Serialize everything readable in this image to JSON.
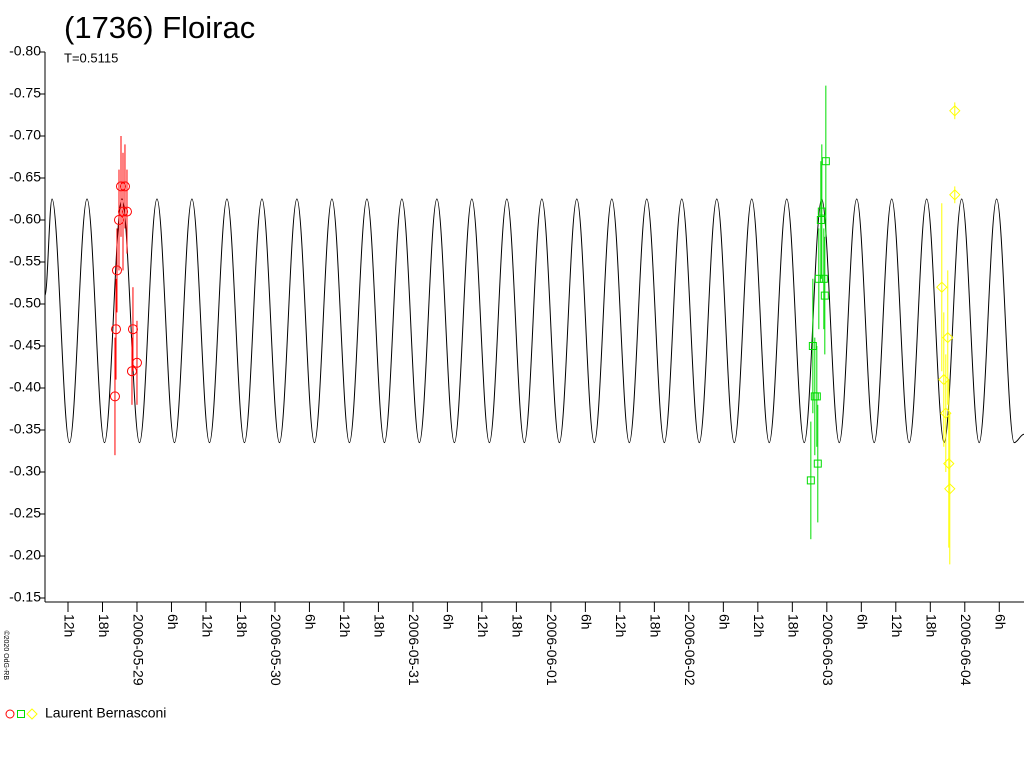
{
  "chart_data": {
    "type": "scatter",
    "title": "(1736) Floirac",
    "subtitle": "T=0.5115",
    "credit": "©2020 OdG-RB",
    "observer": "Laurent Bernasconi",
    "xlim": [
      -16,
      154.3
    ],
    "ylim": [
      -0.15,
      -0.8
    ],
    "xticks": [
      {
        "value": -12,
        "label": "12h"
      },
      {
        "value": -6,
        "label": "18h"
      },
      {
        "value": 0,
        "label": "2006-05-29"
      },
      {
        "value": 6,
        "label": "6h"
      },
      {
        "value": 12,
        "label": "12h"
      },
      {
        "value": 18,
        "label": "18h"
      },
      {
        "value": 24,
        "label": "2006-05-30"
      },
      {
        "value": 30,
        "label": "6h"
      },
      {
        "value": 36,
        "label": "12h"
      },
      {
        "value": 42,
        "label": "18h"
      },
      {
        "value": 48,
        "label": "2006-05-31"
      },
      {
        "value": 54,
        "label": "6h"
      },
      {
        "value": 60,
        "label": "12h"
      },
      {
        "value": 66,
        "label": "18h"
      },
      {
        "value": 72,
        "label": "2006-06-01"
      },
      {
        "value": 78,
        "label": "6h"
      },
      {
        "value": 84,
        "label": "12h"
      },
      {
        "value": 90,
        "label": "18h"
      },
      {
        "value": 96,
        "label": "2006-06-02"
      },
      {
        "value": 102,
        "label": "6h"
      },
      {
        "value": 108,
        "label": "12h"
      },
      {
        "value": 114,
        "label": "18h"
      },
      {
        "value": 120,
        "label": "2006-06-03"
      },
      {
        "value": 126,
        "label": "6h"
      },
      {
        "value": 132,
        "label": "12h"
      },
      {
        "value": 138,
        "label": "18h"
      },
      {
        "value": 144,
        "label": "2006-06-04"
      },
      {
        "value": 150,
        "label": "6h"
      }
    ],
    "yticks": [
      {
        "value": -0.8,
        "label": "-0.80"
      },
      -0.75,
      {
        "value": -0.7,
        "label": "-0.70"
      },
      -0.65,
      {
        "value": -0.6,
        "label": "-0.60"
      },
      -0.55,
      {
        "value": -0.5,
        "label": "-0.50"
      },
      -0.45,
      {
        "value": -0.4,
        "label": "-0.40"
      },
      -0.35,
      {
        "value": -0.3,
        "label": "-0.30"
      },
      -0.25,
      {
        "value": -0.2,
        "label": "-0.20"
      },
      -0.15
    ],
    "curve": {
      "color": "#000000",
      "x": [
        -16,
        -14.78,
        -11.74,
        -8.69,
        -5.65,
        -2.61,
        0.44,
        3.48,
        6.52,
        9.56,
        12.61,
        15.65,
        18.69,
        21.74,
        24.78,
        27.82,
        30.87,
        33.91,
        36.95,
        40.0,
        43.04,
        46.08,
        49.12,
        52.17,
        55.21,
        58.25,
        61.3,
        64.34,
        67.38,
        70.43,
        73.47,
        76.51,
        79.55,
        82.6,
        85.64,
        88.68,
        91.73,
        94.77,
        97.81,
        100.86,
        103.9,
        106.94,
        109.98,
        113.03,
        116.07,
        119.11,
        122.16,
        125.2,
        128.24,
        131.29,
        134.33,
        137.37,
        140.41,
        143.46,
        146.5,
        149.54,
        152.59,
        154.3
      ],
      "values": [
        -0.51,
        -0.625,
        -0.335,
        -0.625,
        -0.335,
        -0.625,
        -0.335,
        -0.625,
        -0.335,
        -0.625,
        -0.335,
        -0.625,
        -0.335,
        -0.625,
        -0.335,
        -0.625,
        -0.335,
        -0.625,
        -0.335,
        -0.625,
        -0.335,
        -0.625,
        -0.335,
        -0.625,
        -0.335,
        -0.625,
        -0.335,
        -0.625,
        -0.335,
        -0.625,
        -0.335,
        -0.625,
        -0.335,
        -0.625,
        -0.335,
        -0.625,
        -0.335,
        -0.625,
        -0.335,
        -0.625,
        -0.335,
        -0.625,
        -0.335,
        -0.625,
        -0.335,
        -0.625,
        -0.335,
        -0.625,
        -0.335,
        -0.625,
        -0.335,
        -0.625,
        -0.335,
        -0.625,
        -0.335,
        -0.625,
        -0.335,
        -0.345
      ]
    },
    "series": [
      {
        "color": "#ff0000",
        "marker": "circle",
        "x": [
          -3.83,
          -3.65,
          -3.48,
          -3.13,
          -2.78,
          -2.43,
          -2.09,
          -1.74,
          -0.87,
          -0.7,
          0.0
        ],
        "values": [
          -0.39,
          -0.47,
          -0.54,
          -0.6,
          -0.64,
          -0.61,
          -0.64,
          -0.61,
          -0.42,
          -0.47,
          -0.43
        ],
        "errors": [
          0.07,
          0.06,
          0.05,
          0.06,
          0.06,
          0.07,
          0.05,
          0.05,
          0.04,
          0.05,
          0.05
        ]
      },
      {
        "color": "#00dd00",
        "marker": "square",
        "x": [
          117.22,
          117.57,
          117.91,
          118.26,
          118.43,
          118.61,
          118.96,
          119.13,
          119.48,
          119.65,
          119.83
        ],
        "values": [
          -0.29,
          -0.45,
          -0.39,
          -0.39,
          -0.31,
          -0.53,
          -0.6,
          -0.61,
          -0.53,
          -0.51,
          -0.67
        ],
        "errors": [
          0.07,
          0.08,
          0.07,
          0.06,
          0.07,
          0.06,
          0.07,
          0.08,
          0.06,
          0.07,
          0.09
        ]
      },
      {
        "color": "#ffff00",
        "marker": "diamond",
        "x": [
          140.0,
          140.35,
          140.7,
          141.04,
          141.22,
          141.39,
          142.26,
          142.26
        ],
        "values": [
          -0.52,
          -0.41,
          -0.37,
          -0.46,
          -0.31,
          -0.28,
          -0.73,
          -0.63
        ],
        "errors": [
          0.1,
          0.08,
          0.07,
          0.08,
          0.1,
          0.09,
          0.01,
          0.01
        ]
      }
    ]
  }
}
